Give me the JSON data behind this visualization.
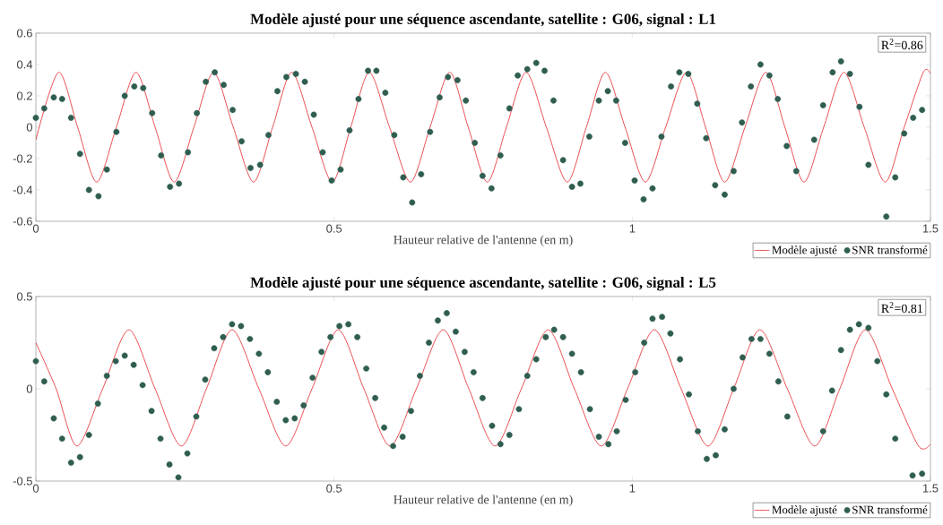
{
  "chart_data": [
    {
      "type": "scatter",
      "title": "Modèle ajusté pour une séquence ascendante, satellite : G06, signal : L1",
      "xlabel": "Hauteur relative de l'antenne (en m)",
      "xlim": [
        0,
        1.5
      ],
      "ylim": [
        -0.6,
        0.6
      ],
      "xticks": [
        0,
        0.5,
        1,
        1.5
      ],
      "yticks": [
        -0.6,
        -0.4,
        -0.2,
        0,
        0.2,
        0.4,
        0.6
      ],
      "legend": "bottom right",
      "annotations": [
        "R$^{2}$=0.86"
      ],
      "series": [
        {
          "name": "Modèle ajusté",
          "type": "line",
          "line_style": "solid",
          "marker": "none",
          "color": "#e3242b",
          "x": [
            0,
            0.038,
            0.07,
            0.102,
            0.135,
            0.168,
            0.2,
            0.232,
            0.265,
            0.298,
            0.331,
            0.365,
            0.397,
            0.429,
            0.463,
            0.497,
            0.528,
            0.559,
            0.593,
            0.628,
            0.661,
            0.694,
            0.725,
            0.757,
            0.789,
            0.822,
            0.856,
            0.891,
            0.923,
            0.955,
            0.988,
            1.022,
            1.056,
            1.091,
            1.123,
            1.155,
            1.189,
            1.224,
            1.256,
            1.288,
            1.321,
            1.355,
            1.389,
            1.424,
            1.456,
            1.488,
            1.5
          ],
          "values": [
            -0.08,
            0.35,
            0,
            -0.35,
            0,
            0.35,
            0,
            -0.35,
            0,
            0.35,
            0,
            -0.35,
            0,
            0.35,
            0,
            -0.35,
            0,
            0.35,
            0,
            -0.35,
            0,
            0.35,
            0,
            -0.35,
            0,
            0.35,
            0,
            -0.35,
            0,
            0.35,
            0,
            -0.35,
            0,
            0.35,
            0,
            -0.35,
            0,
            0.35,
            0,
            -0.35,
            0,
            0.35,
            0,
            -0.35,
            0,
            0.35,
            0.34
          ]
        },
        {
          "name": "SNR transformé",
          "marker": "circle",
          "color": "#2f5e50",
          "x": [
            0,
            0.014,
            0.03,
            0.044,
            0.059,
            0.074,
            0.089,
            0.105,
            0.119,
            0.135,
            0.149,
            0.165,
            0.18,
            0.195,
            0.21,
            0.225,
            0.24,
            0.255,
            0.27,
            0.285,
            0.3,
            0.315,
            0.33,
            0.345,
            0.36,
            0.376,
            0.39,
            0.405,
            0.42,
            0.436,
            0.451,
            0.466,
            0.481,
            0.496,
            0.511,
            0.526,
            0.541,
            0.557,
            0.571,
            0.586,
            0.601,
            0.616,
            0.631,
            0.646,
            0.661,
            0.677,
            0.691,
            0.707,
            0.721,
            0.736,
            0.749,
            0.764,
            0.779,
            0.794,
            0.808,
            0.824,
            0.839,
            0.853,
            0.868,
            0.884,
            0.899,
            0.913,
            0.928,
            0.944,
            0.959,
            0.973,
            0.988,
            1.004,
            1.019,
            1.034,
            1.049,
            1.065,
            1.079,
            1.094,
            1.109,
            1.124,
            1.139,
            1.155,
            1.17,
            1.184,
            1.199,
            1.215,
            1.23,
            1.244,
            1.259,
            1.275,
            1.305,
            1.32,
            1.336,
            1.35,
            1.365,
            1.381,
            1.396,
            1.426,
            1.441,
            1.456,
            1.471,
            1.486
          ],
          "values": [
            0.06,
            0.12,
            0.19,
            0.18,
            0.06,
            -0.17,
            -0.4,
            -0.44,
            -0.27,
            -0.03,
            0.2,
            0.26,
            0.25,
            0.09,
            -0.18,
            -0.38,
            -0.36,
            -0.16,
            0.09,
            0.29,
            0.35,
            0.27,
            0.11,
            -0.09,
            -0.26,
            -0.24,
            -0.05,
            0.23,
            0.32,
            0.34,
            0.29,
            0.08,
            -0.16,
            -0.34,
            -0.27,
            -0.02,
            0.18,
            0.36,
            0.36,
            0.22,
            -0.05,
            -0.32,
            -0.48,
            -0.3,
            -0.03,
            0.19,
            0.32,
            0.3,
            0.17,
            -0.1,
            -0.31,
            -0.39,
            -0.18,
            0.12,
            0.33,
            0.37,
            0.41,
            0.36,
            0.17,
            -0.21,
            -0.38,
            -0.36,
            -0.06,
            0.17,
            0.23,
            0.17,
            -0.1,
            -0.34,
            -0.46,
            -0.39,
            -0.06,
            0.26,
            0.35,
            0.34,
            0.15,
            -0.07,
            -0.37,
            -0.43,
            -0.28,
            0.03,
            0.26,
            0.4,
            0.33,
            0.18,
            -0.12,
            -0.28,
            -0.08,
            0.14,
            0.35,
            0.42,
            0.34,
            0.13,
            -0.24,
            -0.57,
            -0.32,
            -0.04,
            0.06,
            0.11
          ]
        }
      ]
    },
    {
      "type": "scatter",
      "title": "Modèle ajusté pour une séquence ascendante, satellite : G06, signal : L5",
      "xlabel": "Hauteur relative de l'antenne (en m)",
      "xlim": [
        0,
        1.5
      ],
      "ylim": [
        -0.5,
        0.5
      ],
      "xticks": [
        0,
        0.5,
        1,
        1.5
      ],
      "yticks": [
        -0.5,
        0,
        0.5
      ],
      "legend": "bottom right",
      "annotations": [
        "R$^{2}$=0.81"
      ],
      "series": [
        {
          "name": "Modèle ajusté",
          "type": "line",
          "line_style": "solid",
          "marker": "none",
          "color": "#e3242b",
          "x": [
            0,
            0.034,
            0.069,
            0.112,
            0.156,
            0.2,
            0.244,
            0.286,
            0.329,
            0.374,
            0.419,
            0.463,
            0.507,
            0.55,
            0.594,
            0.638,
            0.683,
            0.726,
            0.77,
            0.814,
            0.859,
            0.903,
            0.948,
            0.992,
            1.037,
            1.082,
            1.127,
            1.17,
            1.214,
            1.26,
            1.306,
            1.348,
            1.391,
            1.436,
            1.48,
            1.5
          ],
          "values": [
            0.25,
            0,
            -0.31,
            0,
            0.32,
            0,
            -0.31,
            0,
            0.32,
            0,
            -0.31,
            0,
            0.32,
            0,
            -0.31,
            0,
            0.32,
            0,
            -0.31,
            0,
            0.32,
            0,
            -0.31,
            0,
            0.32,
            0,
            -0.31,
            0,
            0.32,
            0,
            -0.31,
            0,
            0.32,
            0,
            -0.31,
            -0.3
          ]
        },
        {
          "name": "SNR transformé",
          "marker": "circle",
          "color": "#2f5e50",
          "x": [
            0,
            0.014,
            0.03,
            0.044,
            0.059,
            0.074,
            0.089,
            0.104,
            0.119,
            0.134,
            0.149,
            0.164,
            0.179,
            0.194,
            0.209,
            0.224,
            0.239,
            0.254,
            0.269,
            0.284,
            0.299,
            0.314,
            0.329,
            0.344,
            0.359,
            0.374,
            0.389,
            0.404,
            0.419,
            0.434,
            0.449,
            0.464,
            0.479,
            0.494,
            0.509,
            0.524,
            0.539,
            0.554,
            0.569,
            0.584,
            0.599,
            0.615,
            0.629,
            0.644,
            0.659,
            0.674,
            0.689,
            0.704,
            0.719,
            0.734,
            0.749,
            0.765,
            0.779,
            0.794,
            0.81,
            0.824,
            0.839,
            0.855,
            0.869,
            0.884,
            0.899,
            0.914,
            0.929,
            0.944,
            0.96,
            0.974,
            0.989,
            1.005,
            1.02,
            1.034,
            1.05,
            1.064,
            1.08,
            1.095,
            1.11,
            1.125,
            1.14,
            1.155,
            1.17,
            1.185,
            1.2,
            1.215,
            1.23,
            1.245,
            1.26,
            1.32,
            1.335,
            1.35,
            1.365,
            1.38,
            1.396,
            1.411,
            1.426,
            1.441,
            1.47,
            1.486
          ],
          "values": [
            0.15,
            0.04,
            -0.16,
            -0.27,
            -0.4,
            -0.37,
            -0.25,
            -0.08,
            0.07,
            0.15,
            0.18,
            0.13,
            0.02,
            -0.12,
            -0.27,
            -0.41,
            -0.48,
            -0.35,
            -0.15,
            0.05,
            0.22,
            0.28,
            0.35,
            0.34,
            0.27,
            0.19,
            0.09,
            -0.07,
            -0.17,
            -0.16,
            -0.09,
            0.06,
            0.2,
            0.28,
            0.34,
            0.35,
            0.28,
            0.11,
            -0.05,
            -0.21,
            -0.31,
            -0.26,
            -0.12,
            0.07,
            0.25,
            0.37,
            0.41,
            0.31,
            0.2,
            0.09,
            -0.05,
            -0.2,
            -0.3,
            -0.25,
            -0.11,
            0.07,
            0.16,
            0.28,
            0.32,
            0.28,
            0.19,
            0.09,
            -0.11,
            -0.26,
            -0.3,
            -0.23,
            -0.06,
            0.09,
            0.25,
            0.38,
            0.39,
            0.3,
            0.16,
            -0.03,
            -0.23,
            -0.38,
            -0.36,
            -0.22,
            0,
            0.17,
            0.27,
            0.27,
            0.19,
            0.04,
            -0.15,
            -0.23,
            -0.01,
            0.21,
            0.32,
            0.35,
            0.33,
            0.15,
            -0.03,
            -0.27,
            -0.47,
            -0.46
          ]
        }
      ]
    }
  ]
}
